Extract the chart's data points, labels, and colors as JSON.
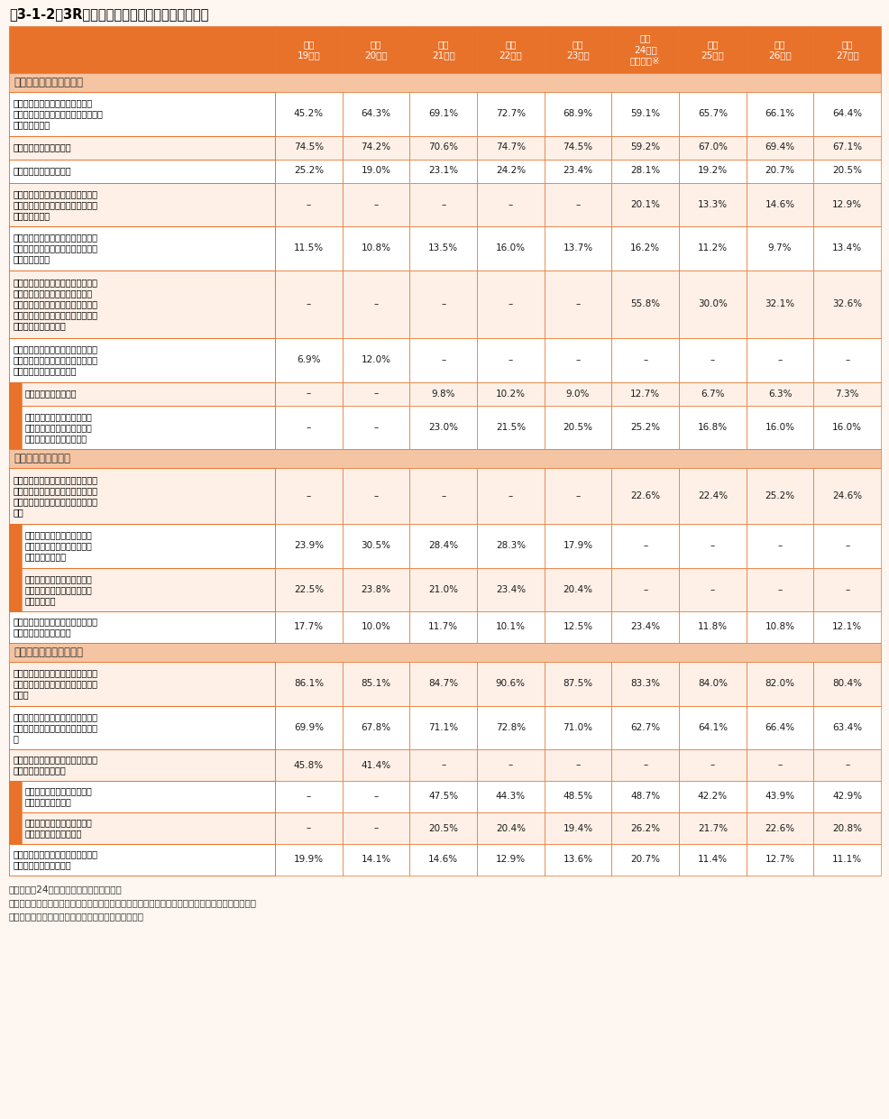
{
  "title": "表3-1-2　3Rに関する主要な具体的行動例の変化",
  "header_color": "#E8722A",
  "header_text_color": "#FFFFFF",
  "section_header_color": "#F5C5A3",
  "border_color": "#E8722A",
  "bg_colors": [
    "#FFFFFF",
    "#FEF0E7"
  ],
  "fig_bg": "#FEF6F0",
  "col_headers": [
    "平成\n19年度",
    "平成\n20年度",
    "平成\n21年度",
    "平成\n22年度",
    "平成\n23年度",
    "平成\n24年度\n世論調査※",
    "平成\n25年度",
    "平成\n26年度",
    "平成\n27年度"
  ],
  "sections": [
    {
      "label": "発生抑制（リデュース）",
      "rows": [
        {
          "level": 1,
          "text": "レジ袋をもらわないようにしたり\n（買い物袋を持参する）、簡易包装を\n店に求めている",
          "values": [
            "45.2%",
            "64.3%",
            "69.1%",
            "72.7%",
            "68.9%",
            "59.1%",
            "65.7%",
            "66.1%",
            "64.4%"
          ]
        },
        {
          "level": 1,
          "text": "詰め替え製品をよく使う",
          "values": [
            "74.5%",
            "74.2%",
            "70.6%",
            "74.7%",
            "74.5%",
            "59.2%",
            "67.0%",
            "69.4%",
            "67.1%"
          ]
        },
        {
          "level": 1,
          "text": "使い捨て製品を買わない",
          "values": [
            "25.2%",
            "19.0%",
            "23.1%",
            "24.2%",
            "23.4%",
            "28.1%",
            "19.2%",
            "20.7%",
            "20.5%"
          ]
        },
        {
          "level": 1,
          "text": "無駄な製品をできるだけ買わないよ\nう、レンタル・リースの製品を使う\nようにしている",
          "values": [
            "–",
            "–",
            "–",
            "–",
            "–",
            "20.1%",
            "13.3%",
            "14.6%",
            "12.9%"
          ]
        },
        {
          "level": 1,
          "text": "簡易包装に取り組んでいたり、使い\n捨て食器類（割り箸等）を使用して\nいない店を選ぶ",
          "values": [
            "11.5%",
            "10.8%",
            "13.5%",
            "16.0%",
            "13.7%",
            "16.2%",
            "11.2%",
            "9.7%",
            "13.4%"
          ]
        },
        {
          "level": 1,
          "text": "買い過ぎ、作り過ぎをせず、生ごみ\nを少なくするなどの料理法（エコ\nクッキング）の実践や消費期限切れ\n等の食品を出さないなど、食品を捨\nてないようにしている",
          "values": [
            "–",
            "–",
            "–",
            "–",
            "–",
            "55.8%",
            "30.0%",
            "32.1%",
            "32.6%"
          ]
        },
        {
          "level": 1,
          "text": "マイ箸を携帯して割り箸をもらわな\nいようにしたり、使い捨て型食器類\nを使わないようにしている",
          "values": [
            "6.9%",
            "12.0%",
            "–",
            "–",
            "–",
            "–",
            "–",
            "–",
            "–"
          ]
        },
        {
          "level": 2,
          "text": "マイ箸を携帯している",
          "values": [
            "–",
            "–",
            "9.8%",
            "10.2%",
            "9.0%",
            "12.7%",
            "6.7%",
            "6.3%",
            "7.3%"
          ]
        },
        {
          "level": 2,
          "text": "ペットボトル等の使い捨て型\n飲料容器や、使い捨て食器類\nを使わないようにしている",
          "values": [
            "–",
            "–",
            "23.0%",
            "21.5%",
            "20.5%",
            "25.2%",
            "16.8%",
            "16.0%",
            "16.0%"
          ]
        }
      ]
    },
    {
      "label": "再使用（リユース）",
      "rows": [
        {
          "level": 1,
          "text": "不用品を、中古品を扱う店やバザー\nやフリーマーケット、インターネッ\nトオークション等を利用して売って\nいる",
          "values": [
            "–",
            "–",
            "–",
            "–",
            "–",
            "22.6%",
            "22.4%",
            "25.2%",
            "24.6%"
          ]
        },
        {
          "level": 2,
          "text": "インターネットオークション\nに出品したり、落札したりす\nるようにしている",
          "values": [
            "23.9%",
            "30.5%",
            "28.4%",
            "28.3%",
            "17.9%",
            "–",
            "–",
            "–",
            "–"
          ]
        },
        {
          "level": 2,
          "text": "中古品を扱う店やバザーやフ\nリーマーケットで売買するよ\nうにしている",
          "values": [
            "22.5%",
            "23.8%",
            "21.0%",
            "23.4%",
            "20.4%",
            "–",
            "–",
            "–",
            "–"
          ]
        },
        {
          "level": 1,
          "text": "ビールや牛乳の瓶など再使用可能な\n容器を使った製品を買う",
          "values": [
            "17.7%",
            "10.0%",
            "11.7%",
            "10.1%",
            "12.5%",
            "23.4%",
            "11.8%",
            "10.8%",
            "12.1%"
          ]
        }
      ]
    },
    {
      "label": "再生利用（リサイクル）",
      "rows": [
        {
          "level": 1,
          "text": "家庭で出たごみはきちんと種類ごと\nに分別して、定められた場所に出し\nている",
          "values": [
            "86.1%",
            "85.1%",
            "84.7%",
            "90.6%",
            "87.5%",
            "83.3%",
            "84.0%",
            "82.0%",
            "80.4%"
          ]
        },
        {
          "level": 1,
          "text": "リサイクルしやすいように、資源ご\nみとして回収される瓶等は洗ってい\nる",
          "values": [
            "69.9%",
            "67.8%",
            "71.1%",
            "72.8%",
            "71.0%",
            "62.7%",
            "64.1%",
            "66.4%",
            "63.4%"
          ]
        },
        {
          "level": 1,
          "text": "スーパーのトレイや携帯電話等、店\n頭回収に協力している",
          "values": [
            "45.8%",
            "41.4%",
            "–",
            "–",
            "–",
            "–",
            "–",
            "–",
            "–"
          ]
        },
        {
          "level": 2,
          "text": "トレイや牛乳パック等の店頭\n回収に協力している",
          "values": [
            "–",
            "–",
            "47.5%",
            "44.3%",
            "48.5%",
            "48.7%",
            "42.2%",
            "43.9%",
            "42.9%"
          ]
        },
        {
          "level": 2,
          "text": "携帯電話等の小型電子機器の\n店頭回収に協力している",
          "values": [
            "–",
            "–",
            "20.5%",
            "20.4%",
            "19.4%",
            "26.2%",
            "21.7%",
            "22.6%",
            "20.8%"
          ]
        },
        {
          "level": 1,
          "text": "再生原料で作られたリサイクル製品\nを積極的に購入している",
          "values": [
            "19.9%",
            "14.1%",
            "14.6%",
            "12.9%",
            "13.6%",
            "20.7%",
            "11.4%",
            "12.7%",
            "11.1%"
          ]
        }
      ]
    }
  ],
  "footnotes": [
    "注１：平成24年度はアンケートを実施せず",
    "　２：設問・選択肢の文章が完全に一致はしていない項目もあるが、類似・同一内容の設問で比較",
    "資料：環境省、内閣府「環境問題に関する世論調査」"
  ]
}
